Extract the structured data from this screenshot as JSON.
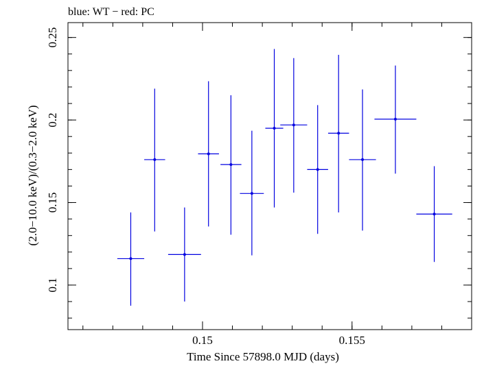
{
  "chart_data": {
    "type": "scatter",
    "title": "blue: WT − red: PC",
    "xlabel": "Time Since 57898.0 MJD (days)",
    "ylabel": "(2.0−10.0 keV)/(0.3−2.0 keV)",
    "xlim": [
      0.1455,
      0.159
    ],
    "ylim": [
      0.073,
      0.259
    ],
    "x_ticks": [
      {
        "value": 0.15,
        "label": "0.15"
      },
      {
        "value": 0.155,
        "label": "0.155"
      }
    ],
    "y_ticks": [
      {
        "value": 0.1,
        "label": "0.1"
      },
      {
        "value": 0.15,
        "label": "0.15"
      },
      {
        "value": 0.2,
        "label": "0.2"
      },
      {
        "value": 0.25,
        "label": "0.25"
      }
    ],
    "x_minor_step": 0.001,
    "y_minor_step": 0.01,
    "grid": false,
    "series": [
      {
        "color": "#0000e0",
        "points": [
          {
            "x": 0.1476,
            "xerr": 0.00045,
            "y": 0.116,
            "yerr_lo": 0.0285,
            "yerr_hi": 0.028
          },
          {
            "x": 0.1484,
            "xerr": 0.00035,
            "y": 0.176,
            "yerr_lo": 0.0435,
            "yerr_hi": 0.043
          },
          {
            "x": 0.1494,
            "xerr": 0.00055,
            "y": 0.1185,
            "yerr_lo": 0.0285,
            "yerr_hi": 0.0285
          },
          {
            "x": 0.1502,
            "xerr": 0.00035,
            "y": 0.1795,
            "yerr_lo": 0.044,
            "yerr_hi": 0.044
          },
          {
            "x": 0.15095,
            "xerr": 0.00035,
            "y": 0.173,
            "yerr_lo": 0.0425,
            "yerr_hi": 0.042
          },
          {
            "x": 0.15165,
            "xerr": 0.0004,
            "y": 0.1555,
            "yerr_lo": 0.0375,
            "yerr_hi": 0.038
          },
          {
            "x": 0.1524,
            "xerr": 0.0003,
            "y": 0.195,
            "yerr_lo": 0.048,
            "yerr_hi": 0.048
          },
          {
            "x": 0.15305,
            "xerr": 0.00045,
            "y": 0.197,
            "yerr_lo": 0.041,
            "yerr_hi": 0.0405
          },
          {
            "x": 0.15385,
            "xerr": 0.00035,
            "y": 0.17,
            "yerr_lo": 0.039,
            "yerr_hi": 0.039
          },
          {
            "x": 0.15455,
            "xerr": 0.00035,
            "y": 0.192,
            "yerr_lo": 0.048,
            "yerr_hi": 0.0475
          },
          {
            "x": 0.15535,
            "xerr": 0.00045,
            "y": 0.176,
            "yerr_lo": 0.043,
            "yerr_hi": 0.0425
          },
          {
            "x": 0.15645,
            "xerr": 0.0007,
            "y": 0.2005,
            "yerr_lo": 0.033,
            "yerr_hi": 0.0325
          },
          {
            "x": 0.15775,
            "xerr": 0.0006,
            "y": 0.143,
            "yerr_lo": 0.029,
            "yerr_hi": 0.029
          }
        ]
      }
    ]
  }
}
